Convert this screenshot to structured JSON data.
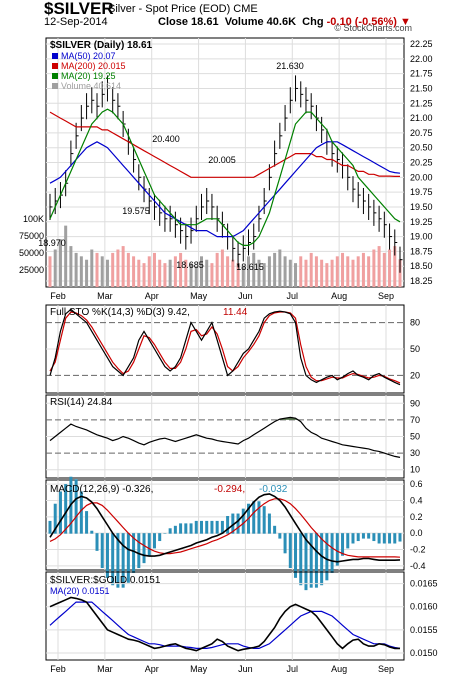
{
  "header": {
    "symbol": "$SILVER",
    "subtitle": "Silver - Spot Price (EOD) CME",
    "date": "12-Sep-2014",
    "close_label": "Close",
    "close_value": "18.61",
    "volume_label": "Volume",
    "volume_value": "40.6K",
    "chg_label": "Chg",
    "chg_value": "-0.10 (-0.56%)",
    "copyright": "© StockCharts.com"
  },
  "colors": {
    "price": "#000000",
    "ma50": "#0000cc",
    "ma200": "#cc0000",
    "ma20": "#008000",
    "vol_up": "#a0a0a0",
    "vol_down": "#f0a0a0",
    "macd_hist": "#2b8fb7",
    "rsi_fill": "#5a7a50",
    "negative": "#c00000"
  },
  "chart_data": [
    {
      "type": "ohlc",
      "title": "$SILVER (Daily) 18.61",
      "legend": [
        {
          "label": "MA(50) 20.07",
          "color": "#0000cc"
        },
        {
          "label": "MA(200) 20.015",
          "color": "#cc0000"
        },
        {
          "label": "MA(20) 19.25",
          "color": "#008000"
        },
        {
          "label": "Volume 40,614",
          "color": "#a0a0a0"
        }
      ],
      "x_ticks": [
        "Feb",
        "Mar",
        "Apr",
        "May",
        "Jun",
        "Jul",
        "Aug",
        "Sep"
      ],
      "y_ticks": [
        "22.25",
        "22.00",
        "21.75",
        "21.50",
        "21.25",
        "21.00",
        "20.75",
        "20.50",
        "20.25",
        "20.00",
        "19.75",
        "19.50",
        "19.25",
        "19.00",
        "18.75",
        "18.50",
        "18.25"
      ],
      "ylim": [
        18.25,
        22.25
      ],
      "volume_ticks": [
        "100K",
        "75000",
        "50000",
        "25000"
      ],
      "annotations": [
        "21.630",
        "20.400",
        "20.005",
        "19.575",
        "18.970",
        "18.685",
        "18.615"
      ],
      "price_close": [
        19.5,
        19.6,
        19.7,
        19.9,
        20.4,
        20.7,
        21.0,
        21.2,
        21.3,
        21.2,
        21.4,
        21.5,
        21.3,
        21.2,
        20.9,
        20.6,
        20.3,
        20.0,
        19.8,
        19.6,
        19.5,
        19.4,
        19.3,
        19.3,
        19.2,
        19.1,
        19.0,
        19.1,
        19.3,
        19.5,
        19.6,
        19.5,
        19.3,
        19.2,
        19.0,
        18.8,
        18.7,
        18.8,
        18.9,
        19.0,
        19.3,
        19.6,
        20.0,
        20.4,
        20.7,
        21.0,
        21.3,
        21.5,
        21.4,
        21.3,
        21.2,
        21.0,
        20.8,
        20.6,
        20.4,
        20.3,
        20.2,
        20.0,
        19.8,
        19.7,
        19.6,
        19.5,
        19.4,
        19.3,
        19.2,
        19.0,
        18.9,
        18.61
      ],
      "ma50": [
        19.9,
        19.95,
        20.0,
        20.1,
        20.2,
        20.3,
        20.4,
        20.5,
        20.55,
        20.6,
        20.55,
        20.5,
        20.4,
        20.3,
        20.2,
        20.1,
        20.0,
        19.9,
        19.8,
        19.7,
        19.6,
        19.5,
        19.4,
        19.35,
        19.3,
        19.25,
        19.2,
        19.15,
        19.1,
        19.1,
        19.1,
        19.05,
        19.0,
        19.0,
        19.0,
        19.0,
        19.05,
        19.1,
        19.2,
        19.3,
        19.4,
        19.5,
        19.6,
        19.7,
        19.8,
        19.9,
        20.0,
        20.1,
        20.2,
        20.3,
        20.4,
        20.5,
        20.55,
        20.6,
        20.6,
        20.6,
        20.55,
        20.5,
        20.45,
        20.4,
        20.35,
        20.3,
        20.25,
        20.2,
        20.15,
        20.1,
        20.08,
        20.07
      ],
      "ma200": [
        21.1,
        21.05,
        21.0,
        20.95,
        20.9,
        20.85,
        20.85,
        20.85,
        20.85,
        20.85,
        20.8,
        20.8,
        20.75,
        20.7,
        20.65,
        20.6,
        20.55,
        20.5,
        20.45,
        20.4,
        20.35,
        20.3,
        20.25,
        20.2,
        20.15,
        20.1,
        20.05,
        20.0,
        20.0,
        20.0,
        20.0,
        20.0,
        20.0,
        20.0,
        20.0,
        20.0,
        20.0,
        20.0,
        20.0,
        20.0,
        20.05,
        20.1,
        20.15,
        20.2,
        20.25,
        20.3,
        20.35,
        20.4,
        20.4,
        20.4,
        20.4,
        20.35,
        20.35,
        20.3,
        20.3,
        20.25,
        20.2,
        20.2,
        20.15,
        20.1,
        20.1,
        20.05,
        20.05,
        20.02,
        20.02,
        20.02,
        20.015,
        20.015
      ],
      "ma20": [
        19.3,
        19.5,
        19.7,
        19.9,
        20.1,
        20.3,
        20.5,
        20.7,
        20.9,
        21.0,
        21.1,
        21.15,
        21.1,
        21.0,
        20.9,
        20.7,
        20.5,
        20.3,
        20.1,
        19.9,
        19.7,
        19.6,
        19.5,
        19.4,
        19.3,
        19.2,
        19.2,
        19.2,
        19.2,
        19.25,
        19.3,
        19.3,
        19.3,
        19.2,
        19.1,
        19.0,
        18.9,
        18.85,
        18.85,
        18.9,
        19.0,
        19.2,
        19.4,
        19.7,
        20.0,
        20.3,
        20.6,
        20.9,
        21.0,
        21.1,
        21.1,
        21.0,
        20.9,
        20.8,
        20.6,
        20.5,
        20.4,
        20.3,
        20.2,
        20.0,
        19.9,
        19.8,
        19.7,
        19.6,
        19.5,
        19.4,
        19.3,
        19.25
      ],
      "volume": [
        45,
        55,
        70,
        90,
        60,
        50,
        45,
        40,
        55,
        50,
        45,
        40,
        50,
        55,
        60,
        50,
        45,
        40,
        35,
        45,
        50,
        40,
        35,
        40,
        45,
        50,
        40,
        35,
        30,
        45,
        40,
        35,
        50,
        55,
        45,
        40,
        35,
        30,
        45,
        50,
        40,
        35,
        45,
        50,
        55,
        45,
        40,
        35,
        45,
        40,
        50,
        45,
        40,
        35,
        40,
        45,
        50,
        45,
        40,
        45,
        50,
        45,
        55,
        60,
        50,
        55,
        60,
        40.6
      ]
    },
    {
      "type": "line",
      "title": "Full STO %K(14,3) %D(3) 9.42, 11.44",
      "series_labels": [
        "Full STO %K(14,3) %D(3) 9.42",
        "11.44"
      ],
      "y_ticks": [
        "80",
        "50",
        "20"
      ],
      "ylim": [
        0,
        100
      ],
      "k": [
        20,
        40,
        70,
        90,
        95,
        90,
        85,
        80,
        70,
        60,
        50,
        40,
        30,
        25,
        20,
        30,
        40,
        60,
        70,
        60,
        50,
        40,
        30,
        25,
        30,
        40,
        60,
        80,
        70,
        60,
        70,
        80,
        60,
        40,
        20,
        25,
        35,
        45,
        50,
        60,
        70,
        85,
        90,
        92,
        93,
        92,
        90,
        80,
        40,
        20,
        15,
        12,
        15,
        18,
        20,
        15,
        18,
        22,
        25,
        20,
        18,
        15,
        20,
        22,
        18,
        15,
        12,
        9.42
      ],
      "d": [
        25,
        35,
        60,
        85,
        92,
        91,
        88,
        83,
        75,
        65,
        55,
        45,
        35,
        28,
        22,
        25,
        35,
        50,
        65,
        63,
        55,
        45,
        35,
        28,
        28,
        35,
        50,
        70,
        72,
        65,
        67,
        75,
        67,
        50,
        30,
        25,
        30,
        40,
        47,
        55,
        65,
        80,
        88,
        91,
        92,
        92,
        91,
        85,
        55,
        30,
        18,
        14,
        14,
        16,
        18,
        17,
        17,
        20,
        22,
        21,
        19,
        17,
        18,
        20,
        19,
        16,
        14,
        11.44
      ]
    },
    {
      "type": "area",
      "title": "RSI(14) 24.84",
      "y_ticks": [
        "90",
        "70",
        "50",
        "30",
        "10"
      ],
      "ylim": [
        0,
        100
      ],
      "values": [
        45,
        50,
        55,
        60,
        65,
        62,
        60,
        58,
        55,
        52,
        50,
        48,
        45,
        47,
        50,
        48,
        45,
        42,
        40,
        43,
        45,
        47,
        48,
        46,
        44,
        46,
        48,
        50,
        52,
        50,
        48,
        47,
        45,
        44,
        43,
        42,
        41,
        45,
        48,
        52,
        56,
        60,
        64,
        68,
        71,
        72,
        73,
        72,
        68,
        60,
        55,
        52,
        48,
        46,
        44,
        42,
        40,
        39,
        38,
        37,
        36,
        35,
        33,
        32,
        30,
        28,
        26,
        24.84
      ]
    },
    {
      "type": "line",
      "title": "MACD(12,26,9) -0.326, -0.294, -0.032",
      "series_labels": [
        "MACD(12,26,9) -0.326",
        "-0.294",
        "-0.032"
      ],
      "y_ticks": [
        "0.6",
        "0.4",
        "0.2",
        "0.0",
        "-0.2",
        "-0.4"
      ],
      "ylim": [
        -0.45,
        0.65
      ],
      "macd": [
        -0.05,
        0.05,
        0.15,
        0.25,
        0.35,
        0.42,
        0.45,
        0.43,
        0.38,
        0.3,
        0.2,
        0.1,
        0.0,
        -0.08,
        -0.15,
        -0.2,
        -0.22,
        -0.25,
        -0.27,
        -0.28,
        -0.28,
        -0.27,
        -0.25,
        -0.23,
        -0.21,
        -0.19,
        -0.17,
        -0.15,
        -0.12,
        -0.1,
        -0.08,
        -0.05,
        -0.03,
        0.0,
        0.05,
        0.1,
        0.15,
        0.22,
        0.3,
        0.38,
        0.44,
        0.47,
        0.48,
        0.45,
        0.4,
        0.32,
        0.22,
        0.12,
        0.02,
        -0.08,
        -0.15,
        -0.22,
        -0.28,
        -0.32,
        -0.34,
        -0.35,
        -0.34,
        -0.33,
        -0.32,
        -0.32,
        -0.31,
        -0.31,
        -0.32,
        -0.33,
        -0.33,
        -0.33,
        -0.33,
        -0.326
      ],
      "signal": [
        -0.1,
        -0.07,
        -0.02,
        0.05,
        0.12,
        0.2,
        0.28,
        0.34,
        0.37,
        0.37,
        0.34,
        0.28,
        0.21,
        0.14,
        0.07,
        0.0,
        -0.06,
        -0.11,
        -0.15,
        -0.19,
        -0.22,
        -0.24,
        -0.25,
        -0.25,
        -0.24,
        -0.23,
        -0.21,
        -0.19,
        -0.17,
        -0.15,
        -0.13,
        -0.1,
        -0.08,
        -0.05,
        -0.02,
        0.02,
        0.07,
        0.12,
        0.18,
        0.25,
        0.31,
        0.36,
        0.4,
        0.42,
        0.42,
        0.4,
        0.36,
        0.3,
        0.23,
        0.15,
        0.07,
        0.0,
        -0.07,
        -0.13,
        -0.18,
        -0.22,
        -0.25,
        -0.27,
        -0.28,
        -0.29,
        -0.29,
        -0.29,
        -0.29,
        -0.29,
        -0.29,
        -0.29,
        -0.29,
        -0.294
      ]
    },
    {
      "type": "line",
      "title": "$SILVER:$GOLD 0.0151",
      "legend": [
        {
          "label": "MA(20) 0.0151",
          "color": "#0000cc"
        }
      ],
      "y_ticks": [
        "0.0165",
        "0.0160",
        "0.0155",
        "0.0150"
      ],
      "ylim": [
        0.01485,
        0.01675
      ],
      "ratio": [
        0.016,
        0.01605,
        0.0161,
        0.01615,
        0.0162,
        0.01618,
        0.01615,
        0.0161,
        0.01595,
        0.0158,
        0.01565,
        0.0155,
        0.01545,
        0.0154,
        0.01535,
        0.0153,
        0.01528,
        0.01525,
        0.0152,
        0.01515,
        0.0151,
        0.01512,
        0.01515,
        0.01518,
        0.0152,
        0.01515,
        0.0151,
        0.01508,
        0.01505,
        0.0151,
        0.01515,
        0.0152,
        0.0153,
        0.01525,
        0.01515,
        0.0151,
        0.01505,
        0.01508,
        0.0151,
        0.01512,
        0.01515,
        0.01525,
        0.0154,
        0.01555,
        0.01575,
        0.0159,
        0.016,
        0.01605,
        0.016,
        0.01595,
        0.0159,
        0.0158,
        0.01565,
        0.0155,
        0.01535,
        0.0152,
        0.0151,
        0.0152,
        0.01528,
        0.0153,
        0.0152,
        0.01515,
        0.01515,
        0.0152,
        0.01518,
        0.01513,
        0.0151,
        0.0151
      ],
      "ma20": [
        0.0156,
        0.0157,
        0.0158,
        0.0159,
        0.016,
        0.0161,
        0.0161,
        0.0161,
        0.0161,
        0.016,
        0.0159,
        0.0158,
        0.0157,
        0.0156,
        0.0155,
        0.0154,
        0.01535,
        0.0153,
        0.01525,
        0.0152,
        0.0152,
        0.01518,
        0.01515,
        0.01515,
        0.01515,
        0.01515,
        0.01513,
        0.01512,
        0.0151,
        0.0151,
        0.0151,
        0.01512,
        0.01515,
        0.01518,
        0.0152,
        0.0152,
        0.0152,
        0.01515,
        0.01512,
        0.0151,
        0.0151,
        0.01515,
        0.0152,
        0.0153,
        0.0154,
        0.0155,
        0.0156,
        0.0157,
        0.0158,
        0.01585,
        0.0159,
        0.0159,
        0.0159,
        0.01585,
        0.0158,
        0.0157,
        0.0156,
        0.0155,
        0.0154,
        0.01535,
        0.0153,
        0.01525,
        0.0152,
        0.0152,
        0.0152,
        0.01515,
        0.01512,
        0.0151
      ]
    }
  ]
}
